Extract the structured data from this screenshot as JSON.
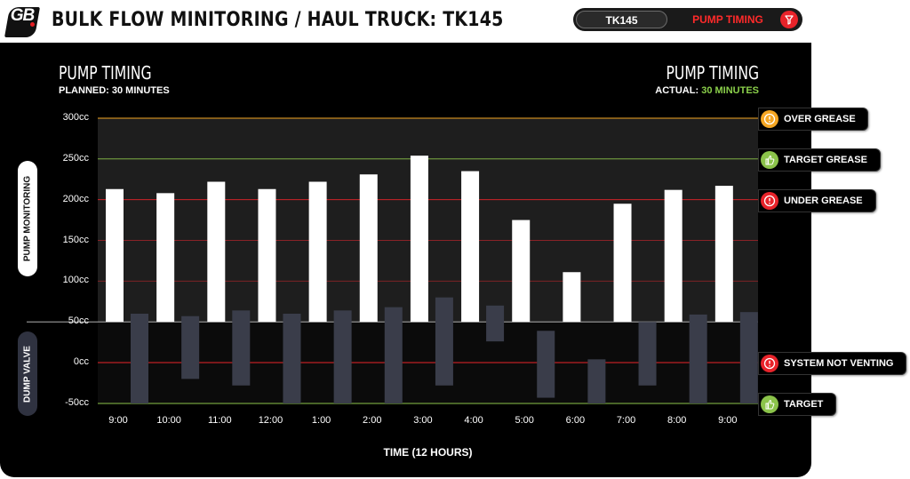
{
  "header": {
    "logo_text": "GB",
    "title": "BULK FLOW MINITORING / HAUL TRUCK: TK145",
    "tabs": [
      "TK145",
      "PUMP TIMING"
    ]
  },
  "panel": {
    "left_title": "PUMP TIMING",
    "left_sub": "PLANNED: 30 MINUTES",
    "right_title": "PUMP TIMING",
    "right_sub_label": "ACTUAL:",
    "right_sub_value": "30 MINUTES",
    "side_top": "PUMP MONITORING",
    "side_bottom": "DUMP VALVE"
  },
  "badges": [
    {
      "label": "OVER GREASE",
      "icon": "alert-icon",
      "color": "#f5a623"
    },
    {
      "label": "TARGET GREASE",
      "icon": "thumbs-up-icon",
      "color": "#8bc34a"
    },
    {
      "label": "UNDER GREASE",
      "icon": "alert-icon",
      "color": "#e8232a"
    },
    {
      "label": "SYSTEM NOT VENTING",
      "icon": "alert-icon",
      "color": "#e8232a"
    },
    {
      "label": "TARGET",
      "icon": "thumbs-up-icon",
      "color": "#8bc34a"
    }
  ],
  "colors": {
    "accent_red": "#e8232a",
    "target_green": "#8bc34a",
    "over_orange": "#f5a623"
  },
  "chart_data": {
    "type": "bar",
    "xlabel": "TIME (12 HOURS)",
    "ylabel": "",
    "categories": [
      "9:00",
      "10:00",
      "11:00",
      "12:00",
      "1:00",
      "2:00",
      "3:00",
      "4:00",
      "5:00",
      "6:00",
      "7:00",
      "8:00",
      "9:00"
    ],
    "yticks": [
      "300cc",
      "250cc",
      "200cc",
      "150cc",
      "100cc",
      "50cc",
      "0cc",
      "-50cc"
    ],
    "ylim": [
      -50,
      300
    ],
    "series": [
      {
        "name": "PUMP MONITORING",
        "values": [
          213,
          208,
          222,
          213,
          222,
          231,
          254,
          235,
          175,
          111,
          195,
          212,
          217
        ]
      },
      {
        "name": "DUMP VALVE",
        "ranges": [
          [
            -50,
            60
          ],
          [
            -20,
            57
          ],
          [
            -28,
            64
          ],
          [
            -50,
            60
          ],
          [
            -50,
            64
          ],
          [
            -50,
            68
          ],
          [
            -28,
            80
          ],
          [
            26,
            70
          ],
          [
            -43,
            39
          ],
          [
            -50,
            4
          ],
          [
            -28,
            50
          ],
          [
            -50,
            59
          ],
          [
            -50,
            62
          ]
        ]
      }
    ],
    "reference_lines": [
      {
        "value": 300,
        "label": "OVER GREASE",
        "color": "#f5a623"
      },
      {
        "value": 250,
        "label": "TARGET GREASE",
        "color": "#8bc34a"
      },
      {
        "value": 200,
        "label": "UNDER GREASE",
        "color": "#e8232a"
      },
      {
        "value": 0,
        "label": "SYSTEM NOT VENTING",
        "color": "#e8232a"
      },
      {
        "value": -50,
        "label": "TARGET",
        "color": "#8bc34a"
      }
    ],
    "grid": true
  }
}
